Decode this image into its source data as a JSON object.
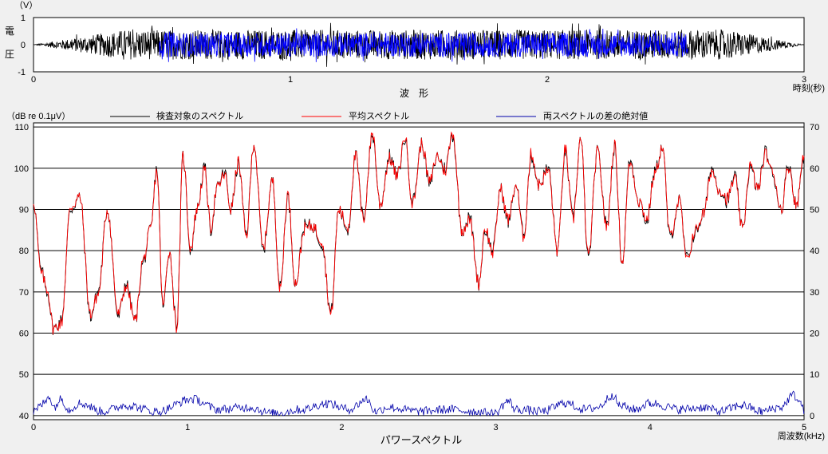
{
  "chart_data": [
    {
      "type": "line",
      "title": "",
      "unit_label": "（V）",
      "ylabel_chars": [
        "電",
        "圧"
      ],
      "xlabel": "波　形",
      "xunit_label": "時刻(秒)",
      "xlim": [
        0,
        3
      ],
      "ylim": [
        -1,
        1
      ],
      "x_ticks": [
        "0",
        "1",
        "2",
        "3"
      ],
      "y_ticks": [
        "1",
        "0",
        "-1"
      ],
      "series": [
        {
          "color": "#000000",
          "x_range": [
            0,
            3
          ],
          "envelope": {
            "rise_end": 0.35,
            "fall_start": 2.7,
            "amplitude": 0.55
          }
        },
        {
          "color": "#0000ff",
          "x_range": [
            0.49,
            2.55
          ],
          "envelope": {
            "amplitude": 0.45
          }
        }
      ],
      "grid": false,
      "notes": "noise-like voltage waveform; blue overlay marks the analyzed segment"
    },
    {
      "type": "line",
      "title": "",
      "ylabel": "（dB re 0.1μV）",
      "xlabel": "パワースペクトル",
      "xunit_label": "周波数(kHz)",
      "xlim": [
        0,
        5
      ],
      "ylim": [
        39,
        111
      ],
      "y2lim": [
        -1,
        71
      ],
      "x_ticks": [
        "0",
        "1",
        "2",
        "3",
        "4",
        "5"
      ],
      "y_ticks": [
        "110",
        "100",
        "90",
        "80",
        "70",
        "60",
        "50",
        "40"
      ],
      "y2_ticks": [
        "70",
        "60",
        "50",
        "40",
        "30",
        "20",
        "10",
        "0"
      ],
      "grid": true,
      "legend": [
        {
          "label": "検査対象のスペクトル",
          "color": "#000000"
        },
        {
          "label": "平均スペクトル",
          "color": "#ff0000"
        },
        {
          "label": "両スペクトルの差の絶対値",
          "color": "#0000aa"
        }
      ],
      "spectrum_x": [
        0,
        0.05,
        0.09,
        0.13,
        0.18,
        0.24,
        0.3,
        0.37,
        0.42,
        0.48,
        0.55,
        0.6,
        0.66,
        0.71,
        0.76,
        0.8,
        0.84,
        0.88,
        0.93,
        0.97,
        1.02,
        1.06,
        1.11,
        1.15,
        1.19,
        1.24,
        1.28,
        1.33,
        1.38,
        1.43,
        1.49,
        1.55,
        1.6,
        1.65,
        1.7,
        1.76,
        1.81,
        1.87,
        1.93,
        1.98,
        2.04,
        2.09,
        2.14,
        2.2,
        2.25,
        2.31,
        2.36,
        2.41,
        2.46,
        2.52,
        2.57,
        2.62,
        2.67,
        2.72,
        2.78,
        2.83,
        2.89,
        2.93,
        2.98,
        3.03,
        3.08,
        3.13,
        3.18,
        3.23,
        3.28,
        3.34,
        3.4,
        3.45,
        3.5,
        3.55,
        3.6,
        3.66,
        3.72,
        3.77,
        3.82,
        3.87,
        3.93,
        3.98,
        4.03,
        4.08,
        4.13,
        4.19,
        4.24,
        4.29,
        4.35,
        4.4,
        4.45,
        4.5,
        4.55,
        4.6,
        4.65,
        4.7,
        4.75,
        4.8,
        4.85,
        4.9,
        4.95,
        5.0
      ],
      "spectrum_y": [
        92,
        75,
        70,
        61,
        63,
        90,
        93,
        64,
        70,
        90,
        64,
        72,
        63,
        77,
        85,
        100,
        66,
        80,
        62,
        103,
        80,
        90,
        100,
        85,
        95,
        99,
        90,
        101,
        84,
        106,
        80,
        97,
        71,
        93,
        72,
        86,
        86,
        82,
        65,
        90,
        85,
        103,
        88,
        108,
        91,
        103,
        98,
        107,
        92,
        106,
        96,
        103,
        100,
        108,
        85,
        88,
        72,
        85,
        80,
        95,
        87,
        96,
        84,
        103,
        96,
        100,
        80,
        104,
        88,
        107,
        78,
        104,
        86,
        105,
        77,
        102,
        92,
        87,
        99,
        105,
        83,
        92,
        78,
        84,
        89,
        100,
        95,
        92,
        98,
        85,
        100,
        95,
        104,
        98,
        90,
        101,
        91,
        103
      ],
      "avg_offset_db": [
        0,
        -1,
        1,
        0,
        -1,
        1,
        0,
        1,
        -1,
        0,
        1,
        -1,
        0,
        1,
        0,
        -1,
        1,
        0,
        -1,
        0,
        1,
        0,
        -1,
        1,
        0,
        -1,
        0,
        1,
        -1,
        0,
        1,
        0,
        -1,
        1,
        0,
        -1,
        0,
        1,
        -1,
        0,
        1,
        0,
        -1,
        1,
        0,
        -1,
        0,
        1,
        -1,
        0,
        1,
        0,
        -1,
        1,
        0,
        -1,
        0,
        1,
        -1,
        0,
        1,
        0,
        -1,
        1,
        0,
        -1,
        0,
        1,
        -1,
        0,
        1,
        0,
        -1,
        1,
        0,
        -1,
        0,
        1,
        -1,
        0,
        1,
        0,
        -1,
        1,
        0,
        -1,
        0,
        1,
        -1,
        0,
        1,
        0,
        -1,
        1,
        0,
        -1,
        0,
        1
      ],
      "diff_x": [
        0,
        0.07,
        0.1,
        0.13,
        0.18,
        0.23,
        0.3,
        0.45,
        0.6,
        0.8,
        1.03,
        1.2,
        1.4,
        1.55,
        1.75,
        1.9,
        2.05,
        2.16,
        2.22,
        2.3,
        2.5,
        2.7,
        2.85,
        2.99,
        3.08,
        3.13,
        3.3,
        3.45,
        3.58,
        3.66,
        3.76,
        3.8,
        3.9,
        4.0,
        4.2,
        4.35,
        4.45,
        4.6,
        4.72,
        4.85,
        4.93,
        4.98,
        5.0
      ],
      "diff_y": [
        1,
        3,
        5,
        2,
        4,
        1.5,
        3,
        1,
        2.5,
        1,
        4,
        1.5,
        2,
        0.5,
        1.5,
        3,
        1.5,
        4,
        1,
        2,
        1,
        1.5,
        1,
        0.5,
        3.5,
        1.5,
        1,
        3,
        1.5,
        2,
        5,
        2.5,
        1.5,
        3,
        1.5,
        2,
        1,
        2.5,
        1,
        2,
        5,
        3,
        1
      ]
    }
  ]
}
